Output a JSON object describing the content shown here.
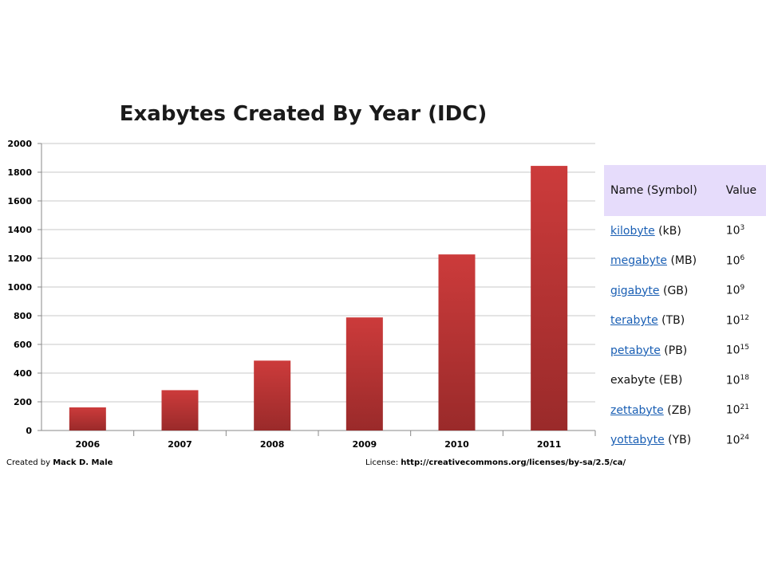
{
  "chart_data": {
    "type": "bar",
    "title": "Exabytes Created By Year (IDC)",
    "categories": [
      "2006",
      "2007",
      "2008",
      "2009",
      "2010",
      "2011"
    ],
    "values": [
      161,
      281,
      487,
      788,
      1227,
      1844
    ],
    "ylim": [
      0,
      2000
    ],
    "yticks": [
      0,
      200,
      400,
      600,
      800,
      1000,
      1200,
      1400,
      1600,
      1800,
      2000
    ],
    "grid": true,
    "bar_color_top": "#cc3b3b",
    "bar_color_bottom": "#9a2a2a"
  },
  "footer": {
    "credit_prefix": "Created by",
    "credit_name": "Mack D. Male",
    "license_prefix": "License:",
    "license_url": "http://creativecommons.org/licenses/by-sa/2.5/ca/"
  },
  "table": {
    "header_name": "Name (Symbol)",
    "header_value": "Value",
    "rows": [
      {
        "name": "kilobyte",
        "symbol": "(kB)",
        "base": "10",
        "exp": "3",
        "link": true
      },
      {
        "name": "megabyte",
        "symbol": "(MB)",
        "base": "10",
        "exp": "6",
        "link": true
      },
      {
        "name": "gigabyte",
        "symbol": "(GB)",
        "base": "10",
        "exp": "9",
        "link": true
      },
      {
        "name": "terabyte",
        "symbol": "(TB)",
        "base": "10",
        "exp": "12",
        "link": true
      },
      {
        "name": "petabyte",
        "symbol": "(PB)",
        "base": "10",
        "exp": "15",
        "link": true
      },
      {
        "name": "exabyte",
        "symbol": "(EB)",
        "base": "10",
        "exp": "18",
        "link": false
      },
      {
        "name": "zettabyte",
        "symbol": "(ZB)",
        "base": "10",
        "exp": "21",
        "link": true
      },
      {
        "name": "yottabyte",
        "symbol": "(YB)",
        "base": "10",
        "exp": "24",
        "link": true
      }
    ]
  }
}
